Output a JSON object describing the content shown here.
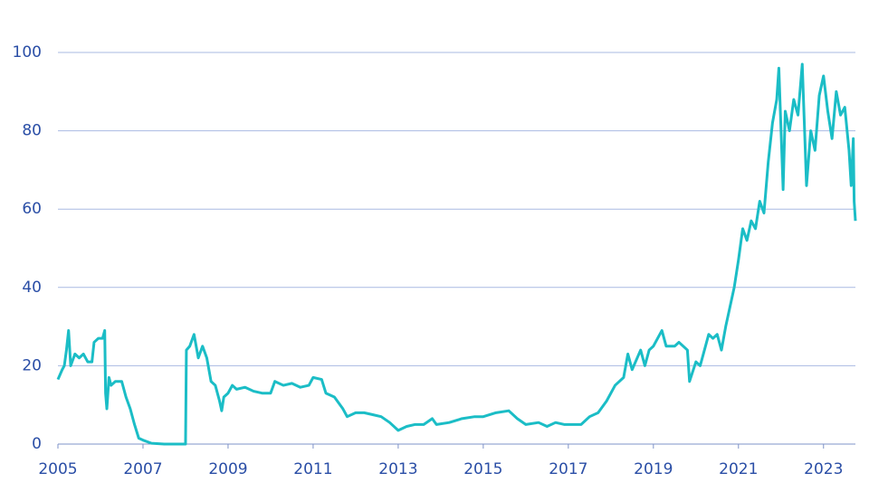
{
  "chart_data": {
    "type": "line",
    "x": [
      2005.0,
      2005.1,
      2005.15,
      2005.2,
      2005.25,
      2005.3,
      2005.4,
      2005.5,
      2005.6,
      2005.7,
      2005.8,
      2005.85,
      2005.95,
      2006.05,
      2006.1,
      2006.12,
      2006.15,
      2006.2,
      2006.25,
      2006.35,
      2006.5,
      2006.6,
      2006.7,
      2006.8,
      2006.9,
      2007.0,
      2007.2,
      2007.5,
      2007.9,
      2008.0,
      2008.02,
      2008.1,
      2008.2,
      2008.3,
      2008.4,
      2008.5,
      2008.6,
      2008.7,
      2008.8,
      2008.85,
      2008.9,
      2009.0,
      2009.1,
      2009.2,
      2009.4,
      2009.6,
      2009.8,
      2010.0,
      2010.1,
      2010.3,
      2010.5,
      2010.7,
      2010.9,
      2011.0,
      2011.2,
      2011.3,
      2011.5,
      2011.7,
      2011.8,
      2012.0,
      2012.2,
      2012.4,
      2012.6,
      2012.8,
      2013.0,
      2013.2,
      2013.4,
      2013.6,
      2013.8,
      2013.9,
      2014.2,
      2014.5,
      2014.8,
      2015.0,
      2015.3,
      2015.6,
      2015.8,
      2016.0,
      2016.3,
      2016.5,
      2016.7,
      2016.9,
      2017.1,
      2017.3,
      2017.5,
      2017.7,
      2017.9,
      2018.1,
      2018.3,
      2018.4,
      2018.5,
      2018.7,
      2018.8,
      2018.9,
      2019.0,
      2019.2,
      2019.3,
      2019.5,
      2019.6,
      2019.8,
      2019.85,
      2020.0,
      2020.1,
      2020.2,
      2020.3,
      2020.4,
      2020.5,
      2020.6,
      2020.7,
      2020.8,
      2020.9,
      2021.0,
      2021.1,
      2021.2,
      2021.3,
      2021.4,
      2021.5,
      2021.6,
      2021.7,
      2021.8,
      2021.9,
      2021.95,
      2022.05,
      2022.1,
      2022.2,
      2022.3,
      2022.4,
      2022.5,
      2022.6,
      2022.7,
      2022.8,
      2022.9,
      2023.0,
      2023.1,
      2023.2,
      2023.3,
      2023.4,
      2023.5,
      2023.6,
      2023.65,
      2023.7,
      2023.72,
      2023.75
    ],
    "series": [
      {
        "color": "#1bbdc6",
        "values": [
          16.5,
          19,
          20,
          24,
          29,
          20,
          23,
          22,
          23,
          21,
          21,
          26,
          27,
          27,
          29,
          13,
          9,
          17,
          15,
          16,
          16,
          12,
          9,
          5,
          1.5,
          1,
          0.2,
          0,
          0,
          0,
          24,
          25,
          28,
          22,
          25,
          22,
          16,
          15,
          11,
          8.5,
          12,
          13,
          15,
          14,
          14.5,
          13.5,
          13,
          13,
          16,
          15,
          15.5,
          14.5,
          15,
          17,
          16.5,
          13,
          12,
          9,
          7,
          8,
          8,
          7.5,
          7,
          5.5,
          3.5,
          4.5,
          5,
          5,
          6.5,
          5,
          5.5,
          6.5,
          7,
          7,
          8,
          8.5,
          6.5,
          5,
          5.5,
          4.5,
          5.5,
          5,
          5,
          5,
          7,
          8,
          11,
          15,
          17,
          23,
          19,
          24,
          20,
          24,
          25,
          29,
          25,
          25,
          26,
          24,
          16,
          21,
          20,
          24,
          28,
          27,
          28,
          24,
          30,
          35,
          40,
          47,
          55,
          52,
          57,
          55,
          62,
          59,
          72,
          82,
          88,
          96,
          65,
          85,
          80,
          88,
          84,
          97,
          66,
          80,
          75,
          89,
          94,
          85,
          78,
          90,
          84,
          86,
          75,
          66,
          78,
          62,
          57
        ]
      }
    ],
    "xlim": [
      2005,
      2023.75
    ],
    "xticks": [
      2005,
      2007,
      2009,
      2011,
      2013,
      2015,
      2017,
      2019,
      2021,
      2023
    ],
    "ylim": [
      0,
      100
    ],
    "yticks": [
      0,
      20,
      40,
      60,
      80,
      100
    ],
    "grid": true
  }
}
